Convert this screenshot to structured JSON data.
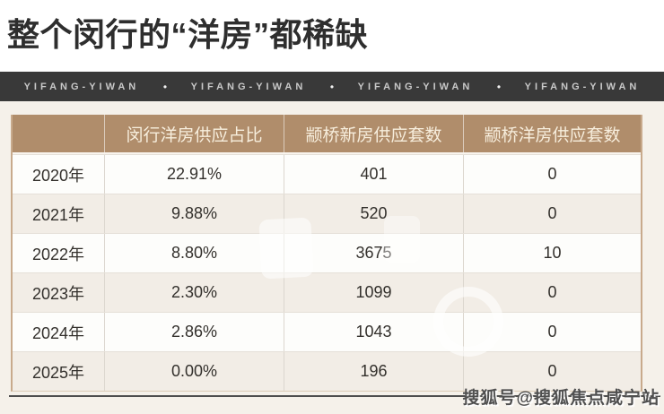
{
  "page": {
    "title": "整个闵行的“洋房”都稀缺"
  },
  "banner": {
    "items": [
      "YIFANG-YIWAN",
      "YIFANG-YIWAN",
      "YIFANG-YIWAN",
      "YIFANG-YIWAN"
    ],
    "separator": "•"
  },
  "chart_data": {
    "type": "table",
    "title": "整个闵行的“洋房”都稀缺",
    "columns": [
      "",
      "闵行洋房供应占比",
      "颛桥新房供应套数",
      "颛桥洋房供应套数"
    ],
    "rows": [
      [
        "2020年",
        "22.91%",
        "401",
        "0"
      ],
      [
        "2021年",
        "9.88%",
        "520",
        "0"
      ],
      [
        "2022年",
        "8.80%",
        "3675",
        "10"
      ],
      [
        "2023年",
        "2.30%",
        "1099",
        "0"
      ],
      [
        "2024年",
        "2.86%",
        "1043",
        "0"
      ],
      [
        "2025年",
        "0.00%",
        "196",
        "0"
      ]
    ],
    "categories": [
      "2020年",
      "2021年",
      "2022年",
      "2023年",
      "2024年",
      "2025年"
    ],
    "series": [
      {
        "name": "闵行洋房供应占比(%)",
        "values": [
          22.91,
          9.88,
          8.8,
          2.3,
          2.86,
          0.0
        ]
      },
      {
        "name": "颛桥新房供应套数",
        "values": [
          401,
          520,
          3675,
          1099,
          1043,
          196
        ]
      },
      {
        "name": "颛桥洋房供应套数",
        "values": [
          0,
          0,
          10,
          0,
          0,
          0
        ]
      }
    ],
    "legend_position": "none",
    "grid": true
  },
  "footer": {
    "watermark": "搜狐号@搜狐焦点咸宁站"
  },
  "colors": {
    "header_brown": "#b08d6b",
    "header_text": "#f7eedd",
    "banner_dark": "#393939",
    "banner_text": "#c9c9c9",
    "row_shade": "#f2ede6",
    "row_light": "#fdfdfb",
    "page_cream": "#f5f1ea",
    "table_side_border": "#c8aa8c",
    "body_text": "#33302c",
    "footer_line": "#4e4e4e"
  }
}
